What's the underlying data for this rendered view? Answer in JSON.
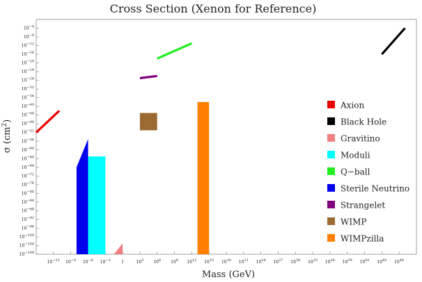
{
  "chart_data": {
    "type": "area",
    "title": "Cross Section (Xenon for Reference)",
    "xlabel": "Mass (GeV)",
    "ylabel_main": "σ (cm",
    "ylabel_sup": "2",
    "ylabel_close": ")",
    "x_scale": "log10",
    "y_scale": "log10",
    "xlim_exp": [
      -15,
      51
    ],
    "ylim_exp": [
      -108,
      0
    ],
    "x_ticks_exp": [
      -12,
      -9,
      -6,
      -3,
      0,
      3,
      6,
      9,
      12,
      15,
      18,
      21,
      24,
      27,
      30,
      33,
      36,
      39,
      42,
      45,
      48
    ],
    "y_ticks_exp": [
      -4,
      -8,
      -12,
      -16,
      -20,
      -24,
      -28,
      -32,
      -36,
      -40,
      -44,
      -48,
      -52,
      -56,
      -60,
      -64,
      -68,
      -72,
      -76,
      -80,
      -84,
      -88,
      -92,
      -96,
      -100,
      -104,
      -108
    ],
    "legend_position": "right",
    "series": [
      {
        "name": "Axion",
        "color": "#ee0000",
        "kind": "line",
        "points": [
          [
            -15,
            -52
          ],
          [
            -11,
            -42
          ]
        ]
      },
      {
        "name": "Black Hole",
        "color": "#000000",
        "kind": "line",
        "points": [
          [
            45,
            -16
          ],
          [
            49,
            -4
          ]
        ]
      },
      {
        "name": "Gravitino",
        "color": "#f08080",
        "kind": "area",
        "points": [
          [
            -1.5,
            -108
          ],
          [
            0,
            -108
          ],
          [
            0,
            -103
          ]
        ]
      },
      {
        "name": "Moduli",
        "color": "#00ffff",
        "kind": "area",
        "points": [
          [
            -6,
            -108
          ],
          [
            -3,
            -108
          ],
          [
            -3,
            -63
          ],
          [
            -6,
            -63
          ]
        ]
      },
      {
        "name": "Q−ball",
        "color": "#22ee22",
        "kind": "line",
        "points": [
          [
            6,
            -18
          ],
          [
            12,
            -11
          ]
        ]
      },
      {
        "name": "Sterile Neutrino",
        "color": "#0000ee",
        "kind": "area",
        "points": [
          [
            -8,
            -108
          ],
          [
            -6,
            -108
          ],
          [
            -6,
            -55
          ],
          [
            -8,
            -68
          ]
        ]
      },
      {
        "name": "Strangelet",
        "color": "#800080",
        "kind": "line",
        "points": [
          [
            3,
            -27
          ],
          [
            6,
            -26
          ]
        ]
      },
      {
        "name": "WIMP",
        "color": "#9b6a33",
        "kind": "area",
        "points": [
          [
            3,
            -43
          ],
          [
            6,
            -43
          ],
          [
            6,
            -51
          ],
          [
            3,
            -51
          ]
        ]
      },
      {
        "name": "WIMPzilla",
        "color": "#ff8000",
        "kind": "area",
        "points": [
          [
            13,
            -108
          ],
          [
            15,
            -108
          ],
          [
            15,
            -38
          ],
          [
            13,
            -38
          ]
        ]
      }
    ]
  }
}
